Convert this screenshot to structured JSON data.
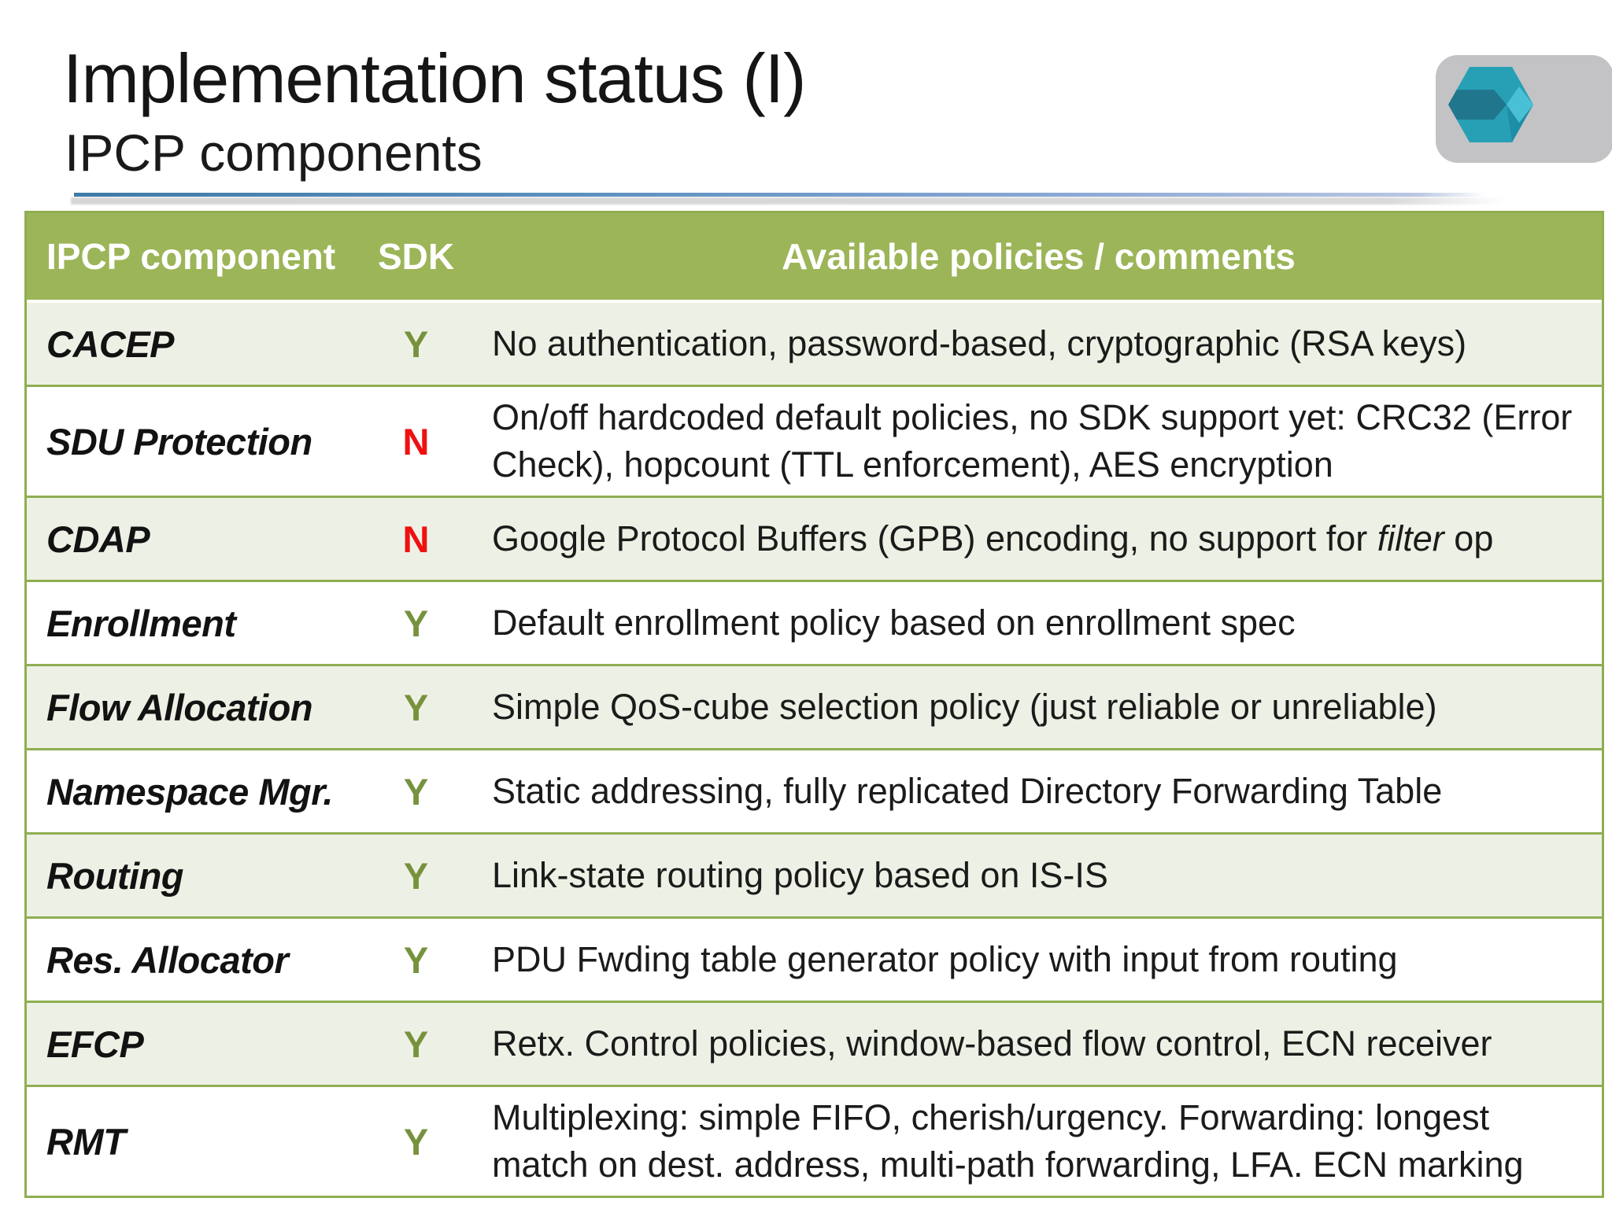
{
  "slide": {
    "title": "Implementation status (I)",
    "subtitle": "IPCP components"
  },
  "logo": {
    "name": "hexagon-cube-logo"
  },
  "table": {
    "headers": [
      "IPCP component",
      "SDK",
      "Available policies / comments"
    ],
    "rows": [
      {
        "component": "CACEP",
        "sdk": "Y",
        "comment": [
          "No authentication, password-based, cryptographic (RSA keys)"
        ]
      },
      {
        "component": "SDU Protection",
        "sdk": "N",
        "comment": [
          "On/off hardcoded default policies, no SDK support yet: CRC32 (Error Check), hopcount (TTL enforcement), AES encryption"
        ]
      },
      {
        "component": "CDAP",
        "sdk": "N",
        "comment": [
          "Google Protocol Buffers (GPB) encoding, no support for ",
          {
            "i": "filter"
          },
          " op"
        ]
      },
      {
        "component": "Enrollment",
        "sdk": "Y",
        "comment": [
          "Default enrollment policy based on enrollment spec"
        ]
      },
      {
        "component": "Flow Allocation",
        "sdk": "Y",
        "comment": [
          "Simple QoS-cube selection policy (just reliable or unreliable)"
        ]
      },
      {
        "component": "Namespace Mgr.",
        "sdk": "Y",
        "comment": [
          "Static addressing, fully replicated Directory Forwarding Table"
        ]
      },
      {
        "component": "Routing",
        "sdk": "Y",
        "comment": [
          "Link-state routing policy based on IS-IS"
        ]
      },
      {
        "component": "Res. Allocator",
        "sdk": "Y",
        "comment": [
          "PDU Fwding table generator policy with input from routing"
        ]
      },
      {
        "component": "EFCP",
        "sdk": "Y",
        "comment": [
          "Retx. Control policies, window-based flow control, ECN receiver"
        ]
      },
      {
        "component": "RMT",
        "sdk": "Y",
        "comment": [
          "Multiplexing: simple FIFO, cherish/urgency. Forwarding: longest match on dest. address, multi-path forwarding, LFA. ECN marking"
        ]
      }
    ]
  },
  "colors": {
    "header_bg": "#9cb558",
    "band": "#edf1e5",
    "border_green": "#8fae51",
    "yes_green": "#76923c",
    "no_red": "#ee1111",
    "rule_blue": "#4f81bd",
    "logo_plate_gray": "#c3c3c5",
    "hex_main_teal": "#27a0b6",
    "hex_dark_teal": "#20768d",
    "hex_light_cyan": "#4ac0d6",
    "hex_shade_teal": "#1e8ea6"
  }
}
